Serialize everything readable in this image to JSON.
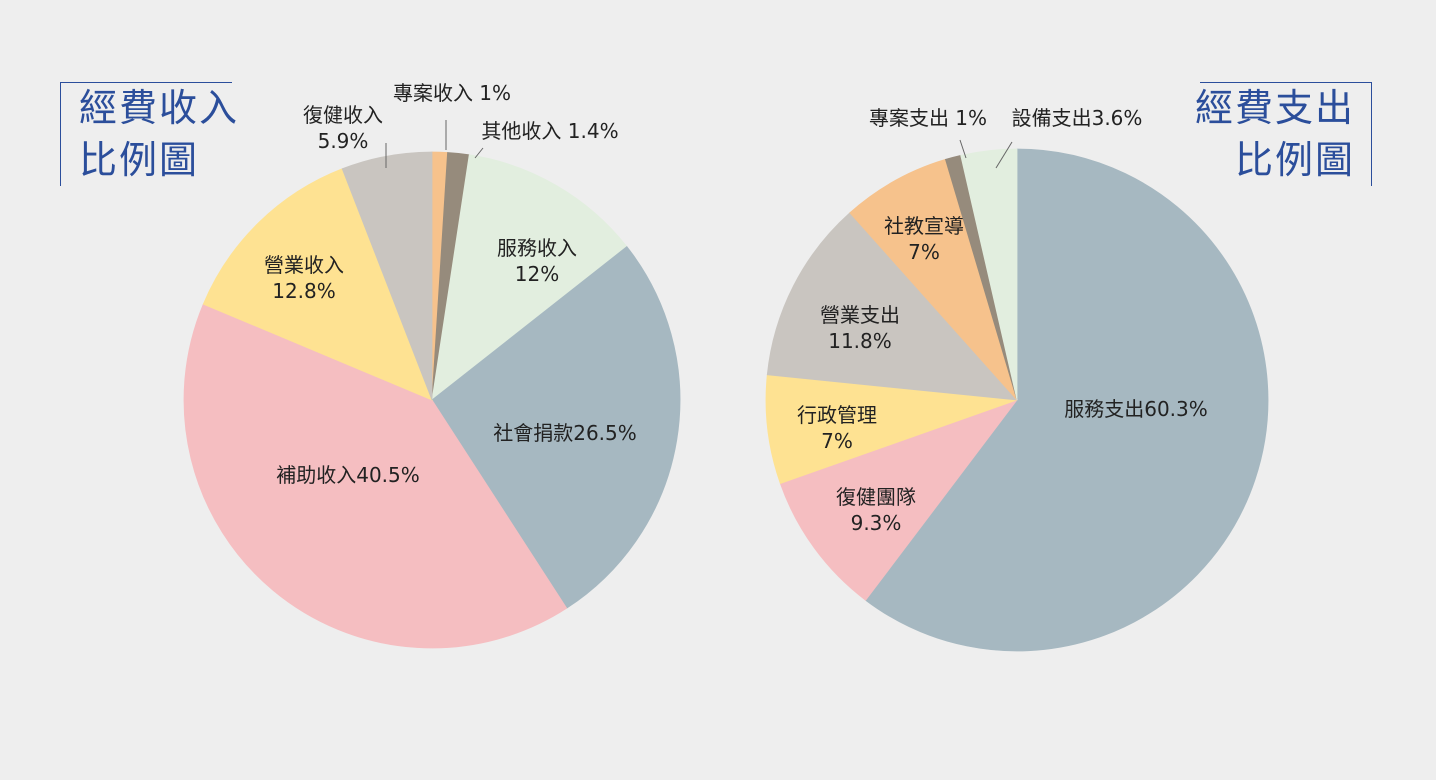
{
  "income_title": {
    "line1": "經費收入",
    "line2": "比例圖"
  },
  "expense_title": {
    "line1": "經費支出",
    "line2": "比例圖"
  },
  "colors": {
    "title": "#2b4e9b",
    "background": "#eeeeee"
  },
  "chart_data": [
    {
      "type": "pie",
      "title": "經費收入比例圖",
      "slices": [
        {
          "label": "專案收入",
          "value": 1,
          "display": "專案收入 1%",
          "color": "#f6c28c"
        },
        {
          "label": "其他收入",
          "value": 1.4,
          "display": "其他收入 1.4%",
          "color": "#968b7c"
        },
        {
          "label": "服務收入",
          "value": 12,
          "display": [
            "服務收入",
            "12%"
          ],
          "color": "#e2eedf"
        },
        {
          "label": "社會捐款",
          "value": 26.5,
          "display": "社會捐款26.5%",
          "color": "#a6b8c1"
        },
        {
          "label": "補助收入",
          "value": 40.5,
          "display": "補助收入40.5%",
          "color": "#f5bec1"
        },
        {
          "label": "營業收入",
          "value": 12.8,
          "display": [
            "營業收入",
            "12.8%"
          ],
          "color": "#fee292"
        },
        {
          "label": "復健收入",
          "value": 5.9,
          "display": [
            "復健收入",
            "5.9%"
          ],
          "color": "#c9c5c0"
        }
      ]
    },
    {
      "type": "pie",
      "title": "經費支出比例圖",
      "slices": [
        {
          "label": "服務支出",
          "value": 60.3,
          "display": "服務支出60.3%",
          "color": "#a6b8c1"
        },
        {
          "label": "復健團隊",
          "value": 9.3,
          "display": [
            "復健團隊",
            "9.3%"
          ],
          "color": "#f5bec1"
        },
        {
          "label": "行政管理",
          "value": 7,
          "display": [
            "行政管理",
            "7%"
          ],
          "color": "#fee292"
        },
        {
          "label": "營業支出",
          "value": 11.8,
          "display": [
            "營業支出",
            "11.8%"
          ],
          "color": "#c9c5c0"
        },
        {
          "label": "社教宣導",
          "value": 7,
          "display": [
            "社教宣導",
            "7%"
          ],
          "color": "#f6c28c"
        },
        {
          "label": "專案支出",
          "value": 1,
          "display": "專案支出 1%",
          "color": "#968b7c"
        },
        {
          "label": "設備支出",
          "value": 3.6,
          "display": "設備支出3.6%",
          "color": "#e2eedf"
        }
      ]
    }
  ]
}
